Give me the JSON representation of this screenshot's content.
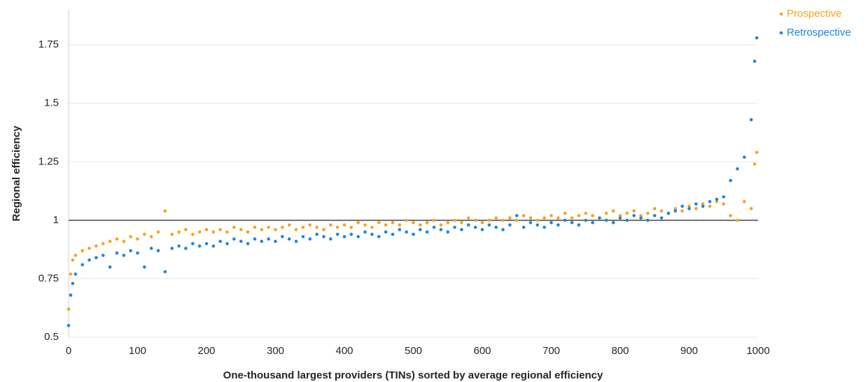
{
  "chart_data": {
    "type": "scatter",
    "x_label": "One-thousand largest providers (TINs) sorted by average regional efficiency",
    "y_label": "Regional efficiency",
    "x": [
      0,
      3,
      6,
      10,
      20,
      30,
      40,
      50,
      60,
      70,
      80,
      90,
      100,
      110,
      120,
      130,
      140,
      150,
      160,
      170,
      180,
      190,
      200,
      210,
      220,
      230,
      240,
      250,
      260,
      270,
      280,
      290,
      300,
      310,
      320,
      330,
      340,
      350,
      360,
      370,
      380,
      390,
      400,
      410,
      420,
      430,
      440,
      450,
      460,
      470,
      480,
      490,
      500,
      510,
      520,
      530,
      540,
      550,
      560,
      570,
      580,
      590,
      600,
      610,
      620,
      630,
      640,
      650,
      660,
      670,
      680,
      690,
      700,
      710,
      720,
      730,
      740,
      750,
      760,
      770,
      780,
      790,
      800,
      810,
      820,
      830,
      840,
      850,
      860,
      870,
      880,
      890,
      900,
      910,
      920,
      930,
      940,
      950,
      960,
      970,
      980,
      990,
      995,
      998
    ],
    "series": [
      {
        "name": "Prospective",
        "color": "#f9a21b",
        "values": [
          0.62,
          0.77,
          0.83,
          0.85,
          0.87,
          0.88,
          0.89,
          0.9,
          0.91,
          0.92,
          0.91,
          0.93,
          0.92,
          0.94,
          0.93,
          0.95,
          1.04,
          0.94,
          0.95,
          0.96,
          0.94,
          0.95,
          0.96,
          0.95,
          0.96,
          0.95,
          0.97,
          0.96,
          0.95,
          0.97,
          0.96,
          0.97,
          0.96,
          0.97,
          0.98,
          0.96,
          0.97,
          0.98,
          0.97,
          0.96,
          0.98,
          0.97,
          0.98,
          0.97,
          0.99,
          0.98,
          0.97,
          0.99,
          0.98,
          0.99,
          0.98,
          1.0,
          0.99,
          0.98,
          0.99,
          1.0,
          0.98,
          0.99,
          1.0,
          0.99,
          1.01,
          1.0,
          0.99,
          1.0,
          1.01,
          1.0,
          1.01,
          1.0,
          1.02,
          1.01,
          1.0,
          1.01,
          1.02,
          1.01,
          1.03,
          1.01,
          1.02,
          1.03,
          1.02,
          1.01,
          1.03,
          1.04,
          1.02,
          1.03,
          1.04,
          1.02,
          1.03,
          1.05,
          1.04,
          1.03,
          1.05,
          1.04,
          1.06,
          1.05,
          1.07,
          1.06,
          1.08,
          1.07,
          1.02,
          1.0,
          1.08,
          1.05,
          1.24,
          1.29
        ]
      },
      {
        "name": "Retrospective",
        "color": "#1a87e0",
        "values": [
          0.55,
          0.68,
          0.73,
          0.77,
          0.81,
          0.83,
          0.84,
          0.85,
          0.8,
          0.86,
          0.85,
          0.87,
          0.86,
          0.8,
          0.88,
          0.87,
          0.78,
          0.88,
          0.89,
          0.88,
          0.9,
          0.89,
          0.9,
          0.89,
          0.91,
          0.9,
          0.92,
          0.91,
          0.9,
          0.92,
          0.91,
          0.92,
          0.91,
          0.93,
          0.92,
          0.91,
          0.93,
          0.92,
          0.94,
          0.93,
          0.92,
          0.94,
          0.93,
          0.94,
          0.93,
          0.95,
          0.94,
          0.93,
          0.95,
          0.94,
          0.96,
          0.95,
          0.94,
          0.96,
          0.95,
          0.97,
          0.96,
          0.95,
          0.97,
          0.96,
          0.98,
          0.97,
          0.96,
          0.98,
          0.97,
          0.96,
          0.98,
          1.02,
          0.97,
          0.99,
          0.98,
          0.97,
          0.99,
          0.98,
          1.0,
          0.99,
          0.98,
          1.0,
          0.99,
          1.01,
          1.0,
          0.99,
          1.01,
          1.0,
          1.02,
          1.01,
          1.0,
          1.02,
          1.01,
          1.03,
          1.04,
          1.06,
          1.05,
          1.07,
          1.06,
          1.08,
          1.09,
          1.1,
          1.17,
          1.22,
          1.27,
          1.43,
          1.68,
          1.78
        ]
      }
    ],
    "xlim": [
      0,
      1000
    ],
    "xticks": [
      0,
      100,
      200,
      300,
      400,
      500,
      600,
      700,
      800,
      900,
      1000
    ],
    "ylim": [
      0.5,
      1.9
    ],
    "yticks": [
      0.5,
      0.75,
      1,
      1.25,
      1.5,
      1.75
    ],
    "reference_line": 1,
    "grid": true,
    "legend": "top-right"
  }
}
